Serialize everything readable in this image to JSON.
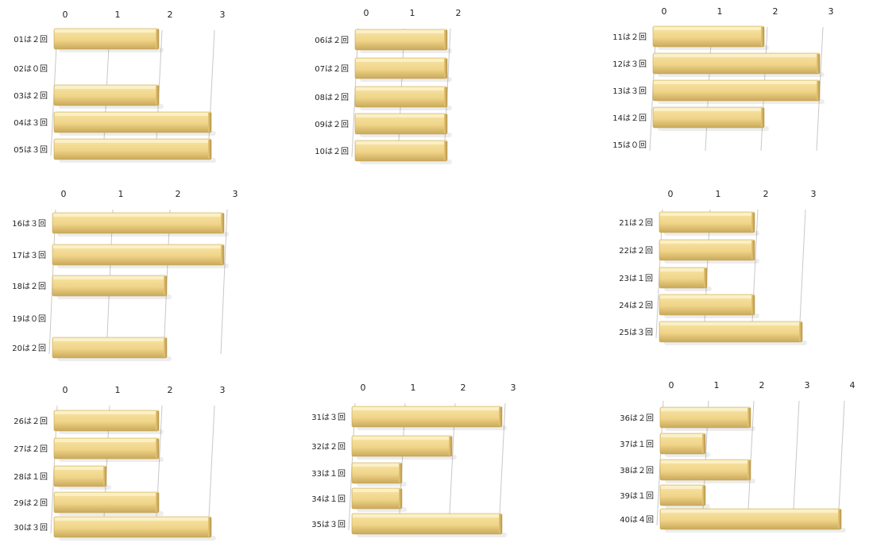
{
  "chart_data": [
    {
      "type": "bar",
      "orientation": "horizontal",
      "xlim": [
        0,
        3
      ],
      "ticks": [
        "0",
        "1",
        "2",
        "3"
      ],
      "categories": [
        "01は２回",
        "02は０回",
        "03は２回",
        "04は３回",
        "05は３回"
      ],
      "values": [
        2,
        0,
        2,
        3,
        3
      ]
    },
    {
      "type": "bar",
      "orientation": "horizontal",
      "xlim": [
        0,
        2
      ],
      "ticks": [
        "0",
        "1",
        "2"
      ],
      "categories": [
        "06は２回",
        "07は２回",
        "08は２回",
        "09は２回",
        "10は２回"
      ],
      "values": [
        2,
        2,
        2,
        2,
        2
      ]
    },
    {
      "type": "bar",
      "orientation": "horizontal",
      "xlim": [
        0,
        3
      ],
      "ticks": [
        "0",
        "1",
        "2",
        "3"
      ],
      "categories": [
        "11は２回",
        "12は３回",
        "13は３回",
        "14は２回",
        "15は０回"
      ],
      "values": [
        2,
        3,
        3,
        2,
        0
      ]
    },
    {
      "type": "bar",
      "orientation": "horizontal",
      "xlim": [
        0,
        3
      ],
      "ticks": [
        "0",
        "1",
        "2",
        "3"
      ],
      "categories": [
        "16は３回",
        "17は３回",
        "18は２回",
        "19は０回",
        "20は２回"
      ],
      "values": [
        3,
        3,
        2,
        0,
        2
      ]
    },
    {
      "type": "bar",
      "orientation": "horizontal",
      "xlim": [
        0,
        3
      ],
      "ticks": [
        "0",
        "1",
        "2",
        "3"
      ],
      "categories": [
        "21は２回",
        "22は２回",
        "23は１回",
        "24は２回",
        "25は３回"
      ],
      "values": [
        2,
        2,
        1,
        2,
        3
      ]
    },
    {
      "type": "bar",
      "orientation": "horizontal",
      "xlim": [
        0,
        3
      ],
      "ticks": [
        "0",
        "1",
        "2",
        "3"
      ],
      "categories": [
        "26は２回",
        "27は２回",
        "28は１回",
        "29は２回",
        "30は３回"
      ],
      "values": [
        2,
        2,
        1,
        2,
        3
      ]
    },
    {
      "type": "bar",
      "orientation": "horizontal",
      "xlim": [
        0,
        3
      ],
      "ticks": [
        "0",
        "1",
        "2",
        "3"
      ],
      "categories": [
        "31は３回",
        "32は２回",
        "33は１回",
        "34は１回",
        "35は３回"
      ],
      "values": [
        3,
        2,
        1,
        1,
        3
      ]
    },
    {
      "type": "bar",
      "orientation": "horizontal",
      "xlim": [
        0,
        4
      ],
      "ticks": [
        "0",
        "1",
        "2",
        "3",
        "4"
      ],
      "categories": [
        "36は２回",
        "37は１回",
        "38は２回",
        "39は１回",
        "40は４回"
      ],
      "values": [
        2,
        1,
        2,
        1,
        4
      ]
    }
  ],
  "colors": {
    "bar_top": "#f7e6a6",
    "bar_mid": "#f0d489",
    "bar_bottom": "#c9a95a",
    "grid": "#c8c8c8"
  }
}
